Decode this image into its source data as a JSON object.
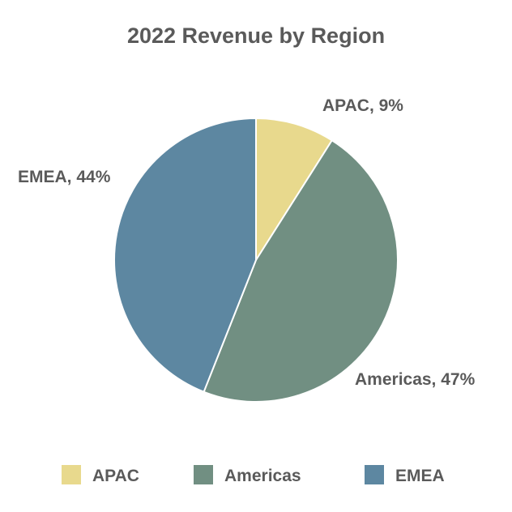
{
  "chart_data": {
    "type": "pie",
    "title": "2022 Revenue by Region",
    "categories": [
      "APAC",
      "Americas",
      "EMEA"
    ],
    "values": [
      9,
      47,
      44
    ],
    "unit": "%",
    "labels": [
      "APAC, 9%",
      "Americas, 47%",
      "EMEA, 44%"
    ],
    "colors": [
      "#e8d98d",
      "#718f82",
      "#5d87a1"
    ],
    "start_angle_deg": 0,
    "direction": "clockwise",
    "legend_position": "bottom"
  }
}
